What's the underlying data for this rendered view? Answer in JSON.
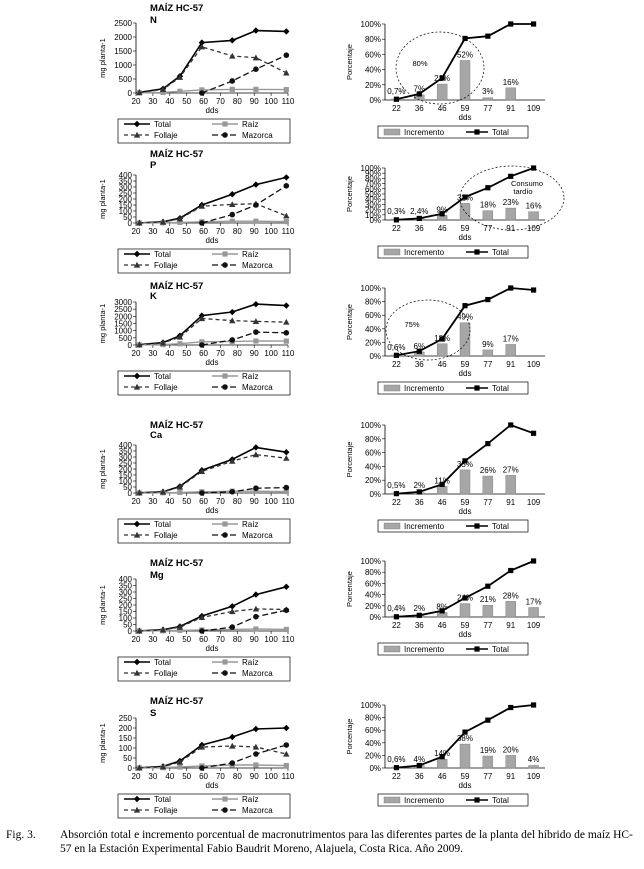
{
  "figure": {
    "caption_label": "Fig. 3.",
    "caption_text": "Absorción total e incremento porcentual de macronutrimentos para las diferentes partes de la planta del híbrido de maíz HC-57 en la Estación Experimental Fabio Baudrit Moreno, Alajuela, Costa Rica. Año 2009."
  },
  "colors": {
    "total": "#000000",
    "raiz": "#999999",
    "follaje": "#333333",
    "mazorca": "#111111",
    "bar": "#a6a6a6"
  },
  "chart_data": [
    {
      "type": "line",
      "panel": "N absorption",
      "title": "MAÍZ HC-57",
      "subtitle": "N",
      "xlabel": "dds",
      "ylabel": "mg planta-1",
      "x": [
        20,
        30,
        40,
        50,
        60,
        70,
        80,
        90,
        100,
        110
      ],
      "xlim": [
        20,
        110
      ],
      "ylim": [
        0,
        2500
      ],
      "yticks": [
        0,
        500,
        1000,
        1500,
        2000,
        2500
      ],
      "series": [
        {
          "name": "Total",
          "x": [
            22,
            36,
            46,
            59,
            77,
            91,
            109
          ],
          "values": [
            20,
            150,
            600,
            1800,
            1880,
            2230,
            2200
          ]
        },
        {
          "name": "Raíz",
          "x": [
            22,
            36,
            46,
            59,
            77,
            91,
            109
          ],
          "values": [
            5,
            20,
            60,
            110,
            130,
            130,
            120
          ]
        },
        {
          "name": "Follaje",
          "x": [
            22,
            36,
            46,
            59,
            77,
            91,
            109
          ],
          "values": [
            15,
            130,
            560,
            1650,
            1320,
            1260,
            720
          ]
        },
        {
          "name": "Mazorca",
          "x": [
            59,
            77,
            91,
            109
          ],
          "values": [
            0,
            430,
            850,
            1350
          ]
        }
      ],
      "legend": "bottom"
    },
    {
      "type": "bar+line",
      "panel": "N increment",
      "xlabel": "dds",
      "ylabel": "Porcentaje",
      "categories": [
        "22",
        "36",
        "46",
        "59",
        "77",
        "91",
        "109"
      ],
      "ylim": [
        0,
        100
      ],
      "yticks": [
        "0%",
        "20%",
        "40%",
        "60%",
        "80%",
        "100%"
      ],
      "series": [
        {
          "name": "Incremento",
          "values": [
            0.7,
            7,
            21,
            52,
            3,
            16,
            0
          ],
          "labels": [
            "0,7%",
            "7%",
            "21%",
            "52%",
            "3%",
            "16%",
            ""
          ]
        },
        {
          "name": "Total",
          "values": [
            1,
            8,
            29,
            81,
            84,
            100,
            100
          ]
        }
      ],
      "annotations": [
        "80%"
      ],
      "legend": "bottom"
    },
    {
      "type": "line",
      "panel": "P absorption",
      "title": "MAÍZ HC-57",
      "subtitle": "P",
      "xlabel": "dds",
      "ylabel": "mg planta-1",
      "x": [
        20,
        30,
        40,
        50,
        60,
        70,
        80,
        90,
        100,
        110
      ],
      "xlim": [
        20,
        110
      ],
      "ylim": [
        0,
        400
      ],
      "yticks": [
        0,
        50,
        100,
        150,
        200,
        250,
        300,
        350,
        400
      ],
      "series": [
        {
          "name": "Total",
          "x": [
            22,
            36,
            46,
            59,
            77,
            91,
            109
          ],
          "values": [
            1,
            10,
            40,
            150,
            240,
            320,
            380
          ]
        },
        {
          "name": "Raíz",
          "x": [
            22,
            36,
            46,
            59,
            77,
            91,
            109
          ],
          "values": [
            0,
            2,
            5,
            10,
            15,
            15,
            12
          ]
        },
        {
          "name": "Follaje",
          "x": [
            22,
            36,
            46,
            59,
            77,
            91,
            109
          ],
          "values": [
            1,
            8,
            35,
            140,
            155,
            160,
            60
          ]
        },
        {
          "name": "Mazorca",
          "x": [
            59,
            77,
            91,
            109
          ],
          "values": [
            0,
            70,
            150,
            310
          ]
        }
      ],
      "legend": "bottom"
    },
    {
      "type": "bar+line",
      "panel": "P increment",
      "xlabel": "dds",
      "ylabel": "Porcentaje",
      "categories": [
        "22",
        "36",
        "46",
        "59",
        "77",
        "91",
        "109"
      ],
      "ylim": [
        0,
        100
      ],
      "yticks": [
        "0%",
        "10%",
        "20%",
        "30%",
        "40%",
        "50%",
        "60%",
        "70%",
        "80%",
        "90%",
        "100%"
      ],
      "series": [
        {
          "name": "Incremento",
          "values": [
            0.3,
            2.4,
            9,
            32,
            18,
            23,
            16
          ],
          "labels": [
            "0,3%",
            "2,4%",
            "9%",
            "32%",
            "18%",
            "23%",
            "16%"
          ]
        },
        {
          "name": "Total",
          "values": [
            0.3,
            3,
            12,
            44,
            62,
            84,
            100
          ]
        }
      ],
      "annotations": [
        "Consumo",
        "tardío"
      ],
      "legend": "bottom"
    },
    {
      "type": "line",
      "panel": "K absorption",
      "title": "MAÍZ HC-57",
      "subtitle": "K",
      "xlabel": "dds",
      "ylabel": "mg planta-1",
      "x": [
        20,
        30,
        40,
        50,
        60,
        70,
        80,
        90,
        100,
        110
      ],
      "xlim": [
        20,
        110
      ],
      "ylim": [
        0,
        3000
      ],
      "yticks": [
        0,
        500,
        1000,
        1500,
        2000,
        2500,
        3000
      ],
      "series": [
        {
          "name": "Total",
          "x": [
            22,
            36,
            46,
            59,
            77,
            91,
            109
          ],
          "values": [
            20,
            170,
            650,
            2050,
            2300,
            2850,
            2750
          ]
        },
        {
          "name": "Raíz",
          "x": [
            22,
            36,
            46,
            59,
            77,
            91,
            109
          ],
          "values": [
            5,
            30,
            90,
            220,
            250,
            280,
            270
          ]
        },
        {
          "name": "Follaje",
          "x": [
            22,
            36,
            46,
            59,
            77,
            91,
            109
          ],
          "values": [
            15,
            140,
            560,
            1850,
            1700,
            1650,
            1600
          ]
        },
        {
          "name": "Mazorca",
          "x": [
            59,
            77,
            91,
            109
          ],
          "values": [
            0,
            350,
            900,
            850
          ]
        }
      ],
      "legend": "bottom"
    },
    {
      "type": "bar+line",
      "panel": "K increment",
      "xlabel": "dds",
      "ylabel": "Porcentaje",
      "categories": [
        "22",
        "36",
        "46",
        "59",
        "77",
        "91",
        "109"
      ],
      "ylim": [
        0,
        100
      ],
      "yticks": [
        "0%",
        "20%",
        "40%",
        "60%",
        "80%",
        "100%"
      ],
      "series": [
        {
          "name": "Incremento",
          "values": [
            0.6,
            6,
            18,
            49,
            9,
            17,
            0
          ],
          "labels": [
            "0,6%",
            "6%",
            "18%",
            "49%",
            "9%",
            "17%",
            ""
          ]
        },
        {
          "name": "Total",
          "values": [
            1,
            7,
            25,
            74,
            83,
            100,
            97
          ]
        }
      ],
      "annotations": [
        "75%"
      ],
      "legend": "bottom"
    },
    {
      "type": "line",
      "panel": "Ca absorption",
      "title": "MAÍZ HC-57",
      "subtitle": "Ca",
      "xlabel": "dds",
      "ylabel": "mg planta-1",
      "x": [
        20,
        30,
        40,
        50,
        60,
        70,
        80,
        90,
        100,
        110
      ],
      "xlim": [
        20,
        110
      ],
      "ylim": [
        0,
        400
      ],
      "yticks": [
        0,
        50,
        100,
        150,
        200,
        250,
        300,
        350,
        400
      ],
      "series": [
        {
          "name": "Total",
          "x": [
            22,
            36,
            46,
            59,
            77,
            91,
            109
          ],
          "values": [
            2,
            10,
            55,
            190,
            280,
            380,
            340
          ]
        },
        {
          "name": "Raíz",
          "x": [
            22,
            36,
            46,
            59,
            77,
            91,
            109
          ],
          "values": [
            0,
            2,
            5,
            10,
            15,
            15,
            12
          ]
        },
        {
          "name": "Follaje",
          "x": [
            22,
            36,
            46,
            59,
            77,
            91,
            109
          ],
          "values": [
            2,
            8,
            50,
            180,
            265,
            320,
            290
          ]
        },
        {
          "name": "Mazorca",
          "x": [
            59,
            77,
            91,
            109
          ],
          "values": [
            0,
            10,
            40,
            45
          ]
        }
      ],
      "legend": "bottom"
    },
    {
      "type": "bar+line",
      "panel": "Ca increment",
      "xlabel": "dds",
      "ylabel": "Porcentaje",
      "categories": [
        "22",
        "36",
        "46",
        "59",
        "77",
        "91",
        "109"
      ],
      "ylim": [
        0,
        100
      ],
      "yticks": [
        "0%",
        "20%",
        "40%",
        "60%",
        "80%",
        "100%"
      ],
      "series": [
        {
          "name": "Incremento",
          "values": [
            0.5,
            2,
            11,
            35,
            26,
            27,
            0
          ],
          "labels": [
            "0,5%",
            "2%",
            "11%",
            "35%",
            "26%",
            "27%",
            ""
          ]
        },
        {
          "name": "Total",
          "values": [
            0.5,
            3,
            14,
            48,
            73,
            100,
            88
          ]
        }
      ],
      "legend": "bottom"
    },
    {
      "type": "line",
      "panel": "Mg absorption",
      "title": "MAÍZ HC-57",
      "subtitle": "Mg",
      "xlabel": "dds",
      "ylabel": "mg planta-1",
      "x": [
        20,
        30,
        40,
        50,
        60,
        70,
        80,
        90,
        100,
        110
      ],
      "xlim": [
        20,
        110
      ],
      "ylim": [
        0,
        400
      ],
      "yticks": [
        0,
        50,
        100,
        150,
        200,
        250,
        300,
        350,
        400
      ],
      "series": [
        {
          "name": "Total",
          "x": [
            22,
            36,
            46,
            59,
            77,
            91,
            109
          ],
          "values": [
            1,
            10,
            35,
            115,
            190,
            280,
            340
          ]
        },
        {
          "name": "Raíz",
          "x": [
            22,
            36,
            46,
            59,
            77,
            91,
            109
          ],
          "values": [
            0,
            2,
            5,
            8,
            12,
            15,
            12
          ]
        },
        {
          "name": "Follaje",
          "x": [
            22,
            36,
            46,
            59,
            77,
            91,
            109
          ],
          "values": [
            1,
            8,
            30,
            105,
            150,
            170,
            165
          ]
        },
        {
          "name": "Mazorca",
          "x": [
            59,
            77,
            91,
            109
          ],
          "values": [
            0,
            30,
            110,
            160
          ]
        }
      ],
      "legend": "bottom"
    },
    {
      "type": "bar+line",
      "panel": "Mg increment",
      "xlabel": "dds",
      "ylabel": "Porcentaje",
      "categories": [
        "22",
        "36",
        "46",
        "59",
        "77",
        "91",
        "109"
      ],
      "ylim": [
        0,
        100
      ],
      "yticks": [
        "0%",
        "20%",
        "40%",
        "60%",
        "80%",
        "100%"
      ],
      "series": [
        {
          "name": "Incremento",
          "values": [
            0.4,
            2,
            8,
            24,
            21,
            28,
            17
          ],
          "labels": [
            "0,4%",
            "2%",
            "8%",
            "24%",
            "21%",
            "28%",
            "17%"
          ]
        },
        {
          "name": "Total",
          "values": [
            0.4,
            3,
            11,
            34,
            55,
            83,
            100
          ]
        }
      ],
      "legend": "bottom"
    },
    {
      "type": "line",
      "panel": "S absorption",
      "title": "MAÍZ HC-57",
      "subtitle": "S",
      "xlabel": "dds",
      "ylabel": "mg planta-1",
      "x": [
        20,
        30,
        40,
        50,
        60,
        70,
        80,
        90,
        100,
        110
      ],
      "xlim": [
        20,
        110
      ],
      "ylim": [
        0,
        250
      ],
      "yticks": [
        0,
        50,
        100,
        150,
        200,
        250
      ],
      "series": [
        {
          "name": "Total",
          "x": [
            22,
            36,
            46,
            59,
            77,
            91,
            109
          ],
          "values": [
            1,
            8,
            35,
            115,
            155,
            195,
            200
          ]
        },
        {
          "name": "Raíz",
          "x": [
            22,
            36,
            46,
            59,
            77,
            91,
            109
          ],
          "values": [
            0,
            2,
            5,
            10,
            15,
            15,
            12
          ]
        },
        {
          "name": "Follaje",
          "x": [
            22,
            36,
            46,
            59,
            77,
            91,
            109
          ],
          "values": [
            1,
            6,
            30,
            105,
            110,
            105,
            70
          ]
        },
        {
          "name": "Mazorca",
          "x": [
            59,
            77,
            91,
            109
          ],
          "values": [
            0,
            25,
            70,
            115
          ]
        }
      ],
      "legend": "bottom"
    },
    {
      "type": "bar+line",
      "panel": "S increment",
      "xlabel": "dds",
      "ylabel": "Porcentaje",
      "categories": [
        "22",
        "36",
        "46",
        "59",
        "77",
        "91",
        "109"
      ],
      "ylim": [
        0,
        100
      ],
      "yticks": [
        "0%",
        "20%",
        "40%",
        "60%",
        "80%",
        "100%"
      ],
      "series": [
        {
          "name": "Incremento",
          "values": [
            0.6,
            4,
            14,
            38,
            19,
            20,
            4
          ],
          "labels": [
            "0,6%",
            "4%",
            "14%",
            "38%",
            "19%",
            "20%",
            "4%"
          ]
        },
        {
          "name": "Total",
          "values": [
            0.6,
            4,
            18,
            57,
            76,
            96,
            100
          ]
        }
      ],
      "legend": "bottom"
    }
  ]
}
